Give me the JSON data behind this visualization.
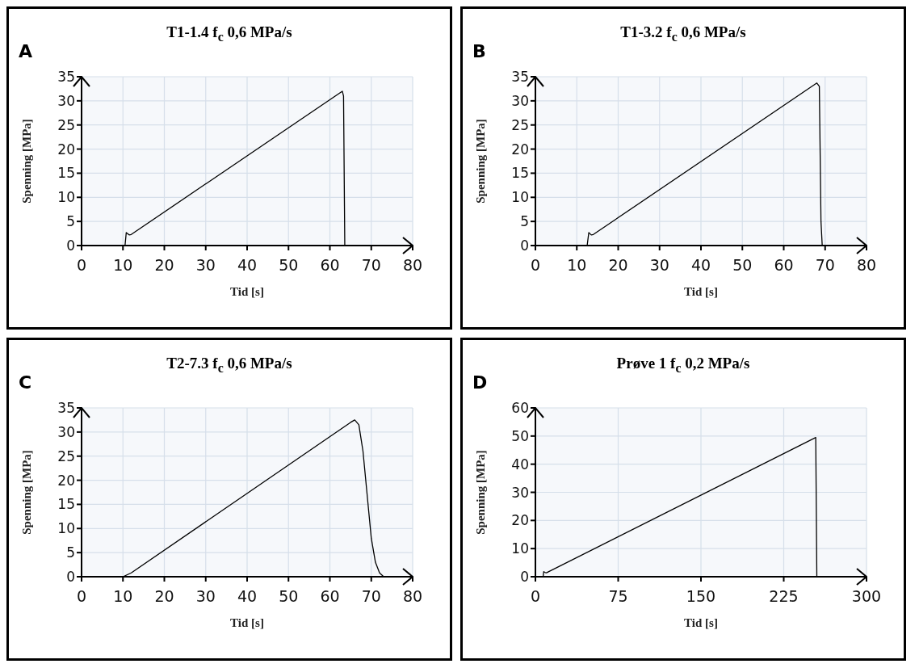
{
  "chart_data": [
    {
      "type": "line",
      "title": "T1-1.4 f$_{c}$ 0,6 MPa/s",
      "xlabel": "Tid [s]",
      "ylabel": "Spenning [MPa]",
      "annotations": [
        "A"
      ],
      "xlim": [
        0,
        80
      ],
      "xticks": [
        0,
        10,
        20,
        30,
        40,
        50,
        60,
        70,
        80
      ],
      "ylim": [
        0,
        35
      ],
      "yticks": [
        0,
        5,
        10,
        15,
        20,
        25,
        30,
        35
      ],
      "grid": true,
      "marker": "none",
      "series": [
        {
          "color": "#000000",
          "x": [
            10.5,
            10.8,
            11.5,
            12,
            63,
            63.3,
            63.6,
            68
          ],
          "values": [
            0,
            2.7,
            2.2,
            2.3,
            32,
            31,
            0,
            0
          ]
        }
      ]
    },
    {
      "type": "line",
      "title": "T1-3.2 f$_{c}$ 0,6 MPa/s",
      "xlabel": "Tid [s]",
      "ylabel": "Spenning [MPa]",
      "annotations": [
        "B"
      ],
      "xlim": [
        0,
        80
      ],
      "xticks": [
        0,
        10,
        20,
        30,
        40,
        50,
        60,
        70,
        80
      ],
      "ylim": [
        0,
        35
      ],
      "yticks": [
        0,
        5,
        10,
        15,
        20,
        25,
        30,
        35
      ],
      "grid": true,
      "marker": "none",
      "series": [
        {
          "color": "#000000",
          "x": [
            12.5,
            12.9,
            13.5,
            14,
            68,
            68.6,
            69,
            69.3,
            75
          ],
          "values": [
            0,
            2.7,
            2.2,
            2.3,
            33.7,
            33,
            5,
            0,
            0
          ]
        }
      ]
    },
    {
      "type": "line",
      "title": "T2-7.3 f$_{c}$ 0,6 MPa/s",
      "xlabel": "Tid [s]",
      "ylabel": "Spenning [MPa]",
      "annotations": [
        "C"
      ],
      "xlim": [
        0,
        80
      ],
      "xticks": [
        0,
        10,
        20,
        30,
        40,
        50,
        60,
        70,
        80
      ],
      "ylim": [
        0,
        35
      ],
      "yticks": [
        0,
        5,
        10,
        15,
        20,
        25,
        30,
        35
      ],
      "grid": true,
      "marker": "none",
      "series": [
        {
          "color": "#000000",
          "x": [
            10,
            12,
            65,
            66,
            67,
            68,
            69,
            70,
            71,
            72,
            73
          ],
          "values": [
            0,
            0.8,
            32,
            32.5,
            31.5,
            26,
            17,
            8,
            3,
            0.8,
            0
          ]
        }
      ]
    },
    {
      "type": "line",
      "title": "Prøve 1 f$_{c}$ 0,2 MPa/s",
      "xlabel": "Tid [s]",
      "ylabel": "Spenning [MPa]",
      "annotations": [
        "D"
      ],
      "xlim": [
        0,
        300
      ],
      "xticks": [
        0,
        75,
        150,
        225,
        300
      ],
      "ylim": [
        0,
        60
      ],
      "yticks": [
        0,
        10,
        20,
        30,
        40,
        50,
        60
      ],
      "grid": true,
      "marker": "none",
      "series": [
        {
          "color": "#000000",
          "x": [
            7,
            7.5,
            9,
            10,
            254,
            255
          ],
          "values": [
            0,
            1.8,
            1.5,
            1.4,
            49.5,
            0
          ]
        }
      ]
    }
  ]
}
